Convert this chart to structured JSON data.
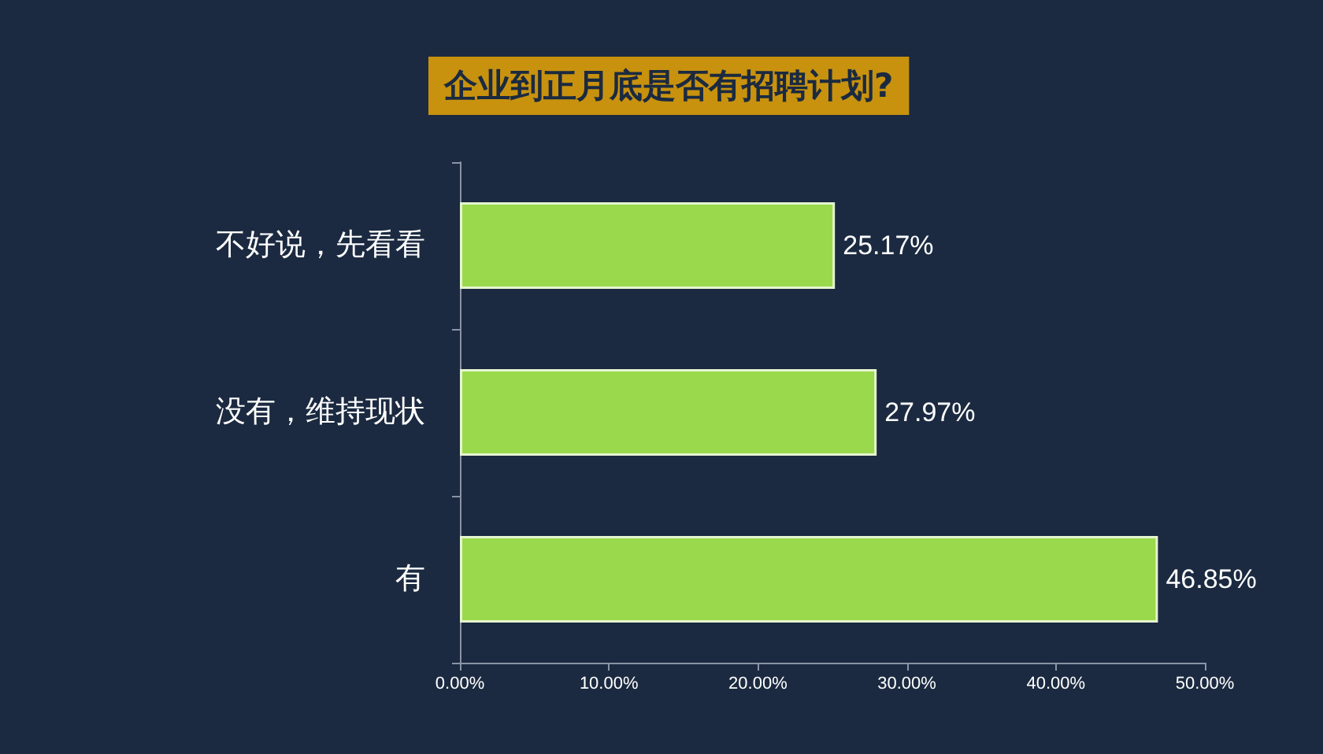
{
  "chart_data": {
    "type": "bar",
    "orientation": "horizontal",
    "title": "企业到正月底是否有招聘计划?",
    "categories": [
      "不好说，先看看",
      "没有，维持现状",
      "有"
    ],
    "values": [
      25.17,
      27.97,
      46.85
    ],
    "value_labels": [
      "25.17%",
      "27.97%",
      "46.85%"
    ],
    "color": "#9ad94c",
    "xlim": [
      0,
      50
    ],
    "xticks": [
      {
        "value": 0,
        "label": "0.00%"
      },
      {
        "value": 10,
        "label": "10.00%"
      },
      {
        "value": 20,
        "label": "20.00%"
      },
      {
        "value": 30,
        "label": "30.00%"
      },
      {
        "value": 40,
        "label": "40.00%"
      },
      {
        "value": 50,
        "label": "50.00%"
      }
    ],
    "grid": false
  }
}
